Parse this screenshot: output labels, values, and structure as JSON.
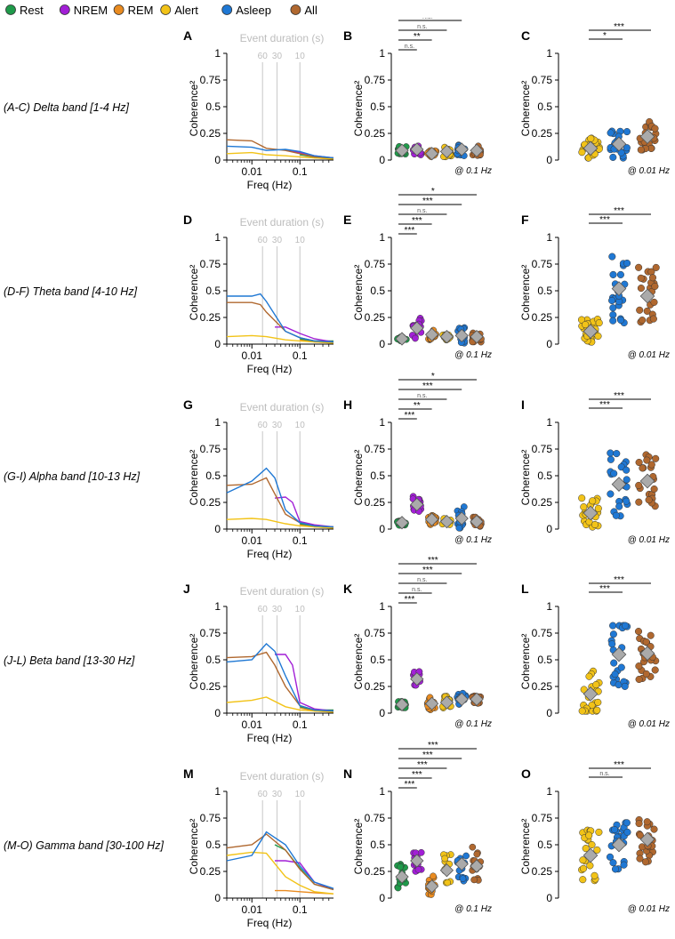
{
  "legend": [
    {
      "label": "Rest",
      "color": "#1f9a4a"
    },
    {
      "label": "NREM",
      "color": "#a21fd6"
    },
    {
      "label": "REM",
      "color": "#e98b20"
    },
    {
      "label": "Alert",
      "color": "#f2c318"
    },
    {
      "label": "Asleep",
      "color": "#1f78d4"
    },
    {
      "label": "All",
      "color": "#b0682f"
    }
  ],
  "common": {
    "coh_ylabel": "Coherence²",
    "freq_xlabel": "Freq (Hz)",
    "event_duration_label": "Event duration (s)",
    "event_duration_marks": [
      "60",
      "30",
      "10"
    ],
    "yticks": [
      "0",
      "0.25",
      "0.5",
      "0.75",
      "1"
    ],
    "xtick_labels": [
      "0.01",
      "0.1"
    ],
    "note_B": "@ 0.1 Hz",
    "note_C": "@ 0.01 Hz"
  },
  "rows": [
    {
      "row_label": "(A-C) Delta band [1-4 Hz]",
      "letters": [
        "A",
        "B",
        "C"
      ],
      "B_sig": [
        "n.s.",
        "**",
        "n.s.",
        "n.s.",
        "n.s."
      ],
      "C_sig": [
        "*",
        "***"
      ]
    },
    {
      "row_label": "(D-F) Theta band [4-10 Hz]",
      "letters": [
        "D",
        "E",
        "F"
      ],
      "B_sig": [
        "***",
        "***",
        "n.s.",
        "***",
        "*"
      ],
      "C_sig": [
        "***",
        "***"
      ]
    },
    {
      "row_label": "(G-I) Alpha band [10-13 Hz]",
      "letters": [
        "G",
        "H",
        "I"
      ],
      "B_sig": [
        "***",
        "**",
        "n.s.",
        "***",
        "*"
      ],
      "C_sig": [
        "***",
        "***"
      ]
    },
    {
      "row_label": "(J-L) Beta band [13-30 Hz]",
      "letters": [
        "J",
        "K",
        "L"
      ],
      "B_sig": [
        "***",
        "n.s.",
        "n.s.",
        "***",
        "***"
      ],
      "C_sig": [
        "***",
        "***"
      ]
    },
    {
      "row_label": "(M-O) Gamma band [30-100 Hz]",
      "letters": [
        "M",
        "N",
        "O"
      ],
      "B_sig": [
        "***",
        "***",
        "***",
        "***",
        "***"
      ],
      "C_sig": [
        "n.s.",
        "***"
      ]
    }
  ],
  "chart_data": [
    {
      "type": "line",
      "panel": "A",
      "title": "Delta band [1-4 Hz]",
      "xlabel": "Freq (Hz)",
      "ylabel": "Coherence²",
      "xscale": "log",
      "xlim": [
        0.003,
        0.5
      ],
      "ylim": [
        0,
        1
      ],
      "series": [
        {
          "name": "All",
          "x": [
            0.003,
            0.01,
            0.02,
            0.05,
            0.1,
            0.2,
            0.5
          ],
          "values": [
            0.19,
            0.18,
            0.11,
            0.09,
            0.06,
            0.03,
            0.02
          ]
        },
        {
          "name": "Asleep",
          "x": [
            0.003,
            0.01,
            0.02,
            0.05,
            0.1,
            0.2,
            0.5
          ],
          "values": [
            0.13,
            0.12,
            0.09,
            0.1,
            0.08,
            0.04,
            0.02
          ]
        },
        {
          "name": "NREM",
          "x": [
            0.05,
            0.1,
            0.2,
            0.5
          ],
          "values": [
            0.09,
            0.07,
            0.04,
            0.02
          ]
        },
        {
          "name": "Alert",
          "x": [
            0.003,
            0.01,
            0.02,
            0.05,
            0.1,
            0.2,
            0.5
          ],
          "values": [
            0.06,
            0.07,
            0.05,
            0.04,
            0.03,
            0.02,
            0.01
          ]
        },
        {
          "name": "Rest",
          "x": [
            0.1,
            0.2,
            0.5
          ],
          "values": [
            0.05,
            0.03,
            0.02
          ]
        },
        {
          "name": "REM",
          "x": [
            0.1,
            0.2,
            0.5
          ],
          "values": [
            0.03,
            0.02,
            0.01
          ]
        }
      ]
    },
    {
      "type": "scatter",
      "panel": "B",
      "ylabel": "Coherence²",
      "ylim": [
        0,
        1
      ],
      "categories": [
        "Rest",
        "NREM",
        "REM",
        "Alert",
        "Asleep",
        "All"
      ],
      "means": [
        0.09,
        0.1,
        0.06,
        0.08,
        0.1,
        0.09
      ],
      "spread": [
        0.04,
        0.06,
        0.03,
        0.05,
        0.06,
        0.05
      ]
    },
    {
      "type": "scatter",
      "panel": "C",
      "ylabel": "Coherence²",
      "ylim": [
        0,
        1
      ],
      "categories": [
        "Alert",
        "Asleep",
        "All"
      ],
      "means": [
        0.11,
        0.15,
        0.22
      ],
      "spread": [
        0.1,
        0.15,
        0.15
      ]
    },
    {
      "type": "line",
      "panel": "D",
      "title": "Theta band [4-10 Hz]",
      "xlabel": "Freq (Hz)",
      "ylabel": "Coherence²",
      "xscale": "log",
      "xlim": [
        0.003,
        0.5
      ],
      "ylim": [
        0,
        1
      ],
      "series": [
        {
          "name": "Asleep",
          "x": [
            0.003,
            0.01,
            0.015,
            0.02,
            0.05,
            0.1,
            0.2,
            0.5
          ],
          "values": [
            0.45,
            0.45,
            0.47,
            0.4,
            0.12,
            0.06,
            0.03,
            0.02
          ]
        },
        {
          "name": "All",
          "x": [
            0.003,
            0.01,
            0.015,
            0.02,
            0.05,
            0.1,
            0.2,
            0.5
          ],
          "values": [
            0.39,
            0.39,
            0.37,
            0.3,
            0.12,
            0.06,
            0.03,
            0.02
          ]
        },
        {
          "name": "NREM",
          "x": [
            0.03,
            0.05,
            0.1,
            0.2,
            0.5
          ],
          "values": [
            0.16,
            0.16,
            0.1,
            0.05,
            0.02
          ]
        },
        {
          "name": "Alert",
          "x": [
            0.003,
            0.01,
            0.02,
            0.05,
            0.1,
            0.2,
            0.5
          ],
          "values": [
            0.07,
            0.08,
            0.07,
            0.04,
            0.03,
            0.02,
            0.01
          ]
        },
        {
          "name": "Rest",
          "x": [
            0.1,
            0.2,
            0.5
          ],
          "values": [
            0.05,
            0.03,
            0.03
          ]
        },
        {
          "name": "REM",
          "x": [
            0.1,
            0.2,
            0.5
          ],
          "values": [
            0.04,
            0.02,
            0.01
          ]
        }
      ]
    },
    {
      "type": "scatter",
      "panel": "E",
      "ylabel": "Coherence²",
      "ylim": [
        0,
        1
      ],
      "categories": [
        "Rest",
        "NREM",
        "REM",
        "Alert",
        "Asleep",
        "All"
      ],
      "means": [
        0.05,
        0.15,
        0.09,
        0.07,
        0.08,
        0.07
      ],
      "spread": [
        0.02,
        0.1,
        0.05,
        0.03,
        0.08,
        0.05
      ]
    },
    {
      "type": "scatter",
      "panel": "F",
      "ylabel": "Coherence²",
      "ylim": [
        0,
        1
      ],
      "categories": [
        "Alert",
        "Asleep",
        "All"
      ],
      "means": [
        0.12,
        0.52,
        0.45
      ],
      "spread": [
        0.12,
        0.35,
        0.28
      ]
    },
    {
      "type": "line",
      "panel": "G",
      "title": "Alpha band [10-13 Hz]",
      "xlabel": "Freq (Hz)",
      "ylabel": "Coherence²",
      "xscale": "log",
      "xlim": [
        0.003,
        0.5
      ],
      "ylim": [
        0,
        1
      ],
      "series": [
        {
          "name": "Asleep",
          "x": [
            0.003,
            0.01,
            0.02,
            0.03,
            0.05,
            0.1,
            0.2,
            0.5
          ],
          "values": [
            0.34,
            0.45,
            0.57,
            0.48,
            0.18,
            0.06,
            0.03,
            0.02
          ]
        },
        {
          "name": "All",
          "x": [
            0.003,
            0.01,
            0.02,
            0.03,
            0.05,
            0.1,
            0.2,
            0.5
          ],
          "values": [
            0.41,
            0.42,
            0.48,
            0.33,
            0.14,
            0.06,
            0.03,
            0.02
          ]
        },
        {
          "name": "NREM",
          "x": [
            0.03,
            0.05,
            0.07,
            0.1,
            0.2,
            0.5
          ],
          "values": [
            0.29,
            0.3,
            0.25,
            0.07,
            0.04,
            0.02
          ]
        },
        {
          "name": "Alert",
          "x": [
            0.003,
            0.01,
            0.02,
            0.05,
            0.1,
            0.2,
            0.5
          ],
          "values": [
            0.09,
            0.1,
            0.09,
            0.05,
            0.03,
            0.02,
            0.01
          ]
        },
        {
          "name": "Rest",
          "x": [
            0.1,
            0.2,
            0.5
          ],
          "values": [
            0.05,
            0.03,
            0.02
          ]
        },
        {
          "name": "REM",
          "x": [
            0.1,
            0.2,
            0.5
          ],
          "values": [
            0.04,
            0.02,
            0.01
          ]
        }
      ]
    },
    {
      "type": "scatter",
      "panel": "H",
      "ylabel": "Coherence²",
      "ylim": [
        0,
        1
      ],
      "categories": [
        "Rest",
        "NREM",
        "REM",
        "Alert",
        "Asleep",
        "All"
      ],
      "means": [
        0.06,
        0.23,
        0.09,
        0.07,
        0.1,
        0.07
      ],
      "spread": [
        0.03,
        0.08,
        0.05,
        0.03,
        0.12,
        0.05
      ]
    },
    {
      "type": "scatter",
      "panel": "I",
      "ylabel": "Coherence²",
      "ylim": [
        0,
        1
      ],
      "categories": [
        "Alert",
        "Asleep",
        "All"
      ],
      "means": [
        0.15,
        0.42,
        0.45
      ],
      "spread": [
        0.15,
        0.3,
        0.25
      ]
    },
    {
      "type": "line",
      "panel": "J",
      "title": "Beta band [13-30 Hz]",
      "xlabel": "Freq (Hz)",
      "ylabel": "Coherence²",
      "xscale": "log",
      "xlim": [
        0.003,
        0.5
      ],
      "ylim": [
        0,
        1
      ],
      "series": [
        {
          "name": "Asleep",
          "x": [
            0.003,
            0.01,
            0.02,
            0.03,
            0.05,
            0.1,
            0.2,
            0.5
          ],
          "values": [
            0.48,
            0.5,
            0.65,
            0.58,
            0.35,
            0.07,
            0.03,
            0.02
          ]
        },
        {
          "name": "All",
          "x": [
            0.003,
            0.01,
            0.02,
            0.03,
            0.05,
            0.1,
            0.2,
            0.5
          ],
          "values": [
            0.52,
            0.53,
            0.57,
            0.45,
            0.25,
            0.07,
            0.03,
            0.02
          ]
        },
        {
          "name": "NREM",
          "x": [
            0.03,
            0.05,
            0.07,
            0.1,
            0.2,
            0.5
          ],
          "values": [
            0.55,
            0.55,
            0.45,
            0.1,
            0.04,
            0.02
          ]
        },
        {
          "name": "Alert",
          "x": [
            0.003,
            0.01,
            0.02,
            0.05,
            0.1,
            0.2,
            0.5
          ],
          "values": [
            0.1,
            0.12,
            0.15,
            0.06,
            0.03,
            0.02,
            0.01
          ]
        },
        {
          "name": "Rest",
          "x": [
            0.1,
            0.2,
            0.5
          ],
          "values": [
            0.06,
            0.03,
            0.03
          ]
        },
        {
          "name": "REM",
          "x": [
            0.1,
            0.2,
            0.5
          ],
          "values": [
            0.05,
            0.02,
            0.01
          ]
        }
      ]
    },
    {
      "type": "scatter",
      "panel": "K",
      "ylabel": "Coherence²",
      "ylim": [
        0,
        1
      ],
      "categories": [
        "Rest",
        "NREM",
        "REM",
        "Alert",
        "Asleep",
        "All"
      ],
      "means": [
        0.08,
        0.32,
        0.09,
        0.1,
        0.13,
        0.13
      ],
      "spread": [
        0.03,
        0.08,
        0.06,
        0.06,
        0.06,
        0.04
      ]
    },
    {
      "type": "scatter",
      "panel": "L",
      "ylabel": "Coherence²",
      "ylim": [
        0,
        1
      ],
      "categories": [
        "Alert",
        "Asleep",
        "All"
      ],
      "means": [
        0.18,
        0.55,
        0.56
      ],
      "spread": [
        0.22,
        0.3,
        0.25
      ]
    },
    {
      "type": "line",
      "panel": "M",
      "title": "Gamma band [30-100 Hz]",
      "xlabel": "Freq (Hz)",
      "ylabel": "Coherence²",
      "xscale": "log",
      "xlim": [
        0.003,
        0.5
      ],
      "ylim": [
        0,
        1
      ],
      "series": [
        {
          "name": "Asleep",
          "x": [
            0.003,
            0.01,
            0.02,
            0.05,
            0.1,
            0.2,
            0.5
          ],
          "values": [
            0.35,
            0.4,
            0.62,
            0.5,
            0.3,
            0.15,
            0.09
          ]
        },
        {
          "name": "All",
          "x": [
            0.003,
            0.01,
            0.02,
            0.05,
            0.1,
            0.2,
            0.5
          ],
          "values": [
            0.47,
            0.5,
            0.6,
            0.45,
            0.27,
            0.13,
            0.08
          ]
        },
        {
          "name": "NREM",
          "x": [
            0.03,
            0.05,
            0.1,
            0.2,
            0.5
          ],
          "values": [
            0.35,
            0.35,
            0.33,
            0.15,
            0.08
          ]
        },
        {
          "name": "Rest",
          "x": [
            0.03,
            0.05,
            0.1,
            0.2,
            0.5
          ],
          "values": [
            0.5,
            0.45,
            0.28,
            0.13,
            0.08
          ]
        },
        {
          "name": "Alert",
          "x": [
            0.003,
            0.01,
            0.02,
            0.05,
            0.1,
            0.2,
            0.5
          ],
          "values": [
            0.4,
            0.43,
            0.42,
            0.2,
            0.12,
            0.06,
            0.04
          ]
        },
        {
          "name": "REM",
          "x": [
            0.03,
            0.05,
            0.1,
            0.2,
            0.5
          ],
          "values": [
            0.07,
            0.07,
            0.06,
            0.05,
            0.04
          ]
        }
      ]
    },
    {
      "type": "scatter",
      "panel": "N",
      "ylabel": "Coherence²",
      "ylim": [
        0,
        1
      ],
      "categories": [
        "Rest",
        "NREM",
        "REM",
        "Alert",
        "Asleep",
        "All"
      ],
      "means": [
        0.2,
        0.35,
        0.11,
        0.26,
        0.32,
        0.3
      ],
      "spread": [
        0.12,
        0.12,
        0.1,
        0.15,
        0.18,
        0.18
      ]
    },
    {
      "type": "scatter",
      "panel": "O",
      "ylabel": "Coherence²",
      "ylim": [
        0,
        1
      ],
      "categories": [
        "Alert",
        "Asleep",
        "All"
      ],
      "means": [
        0.4,
        0.5,
        0.55
      ],
      "spread": [
        0.25,
        0.25,
        0.22
      ]
    }
  ]
}
